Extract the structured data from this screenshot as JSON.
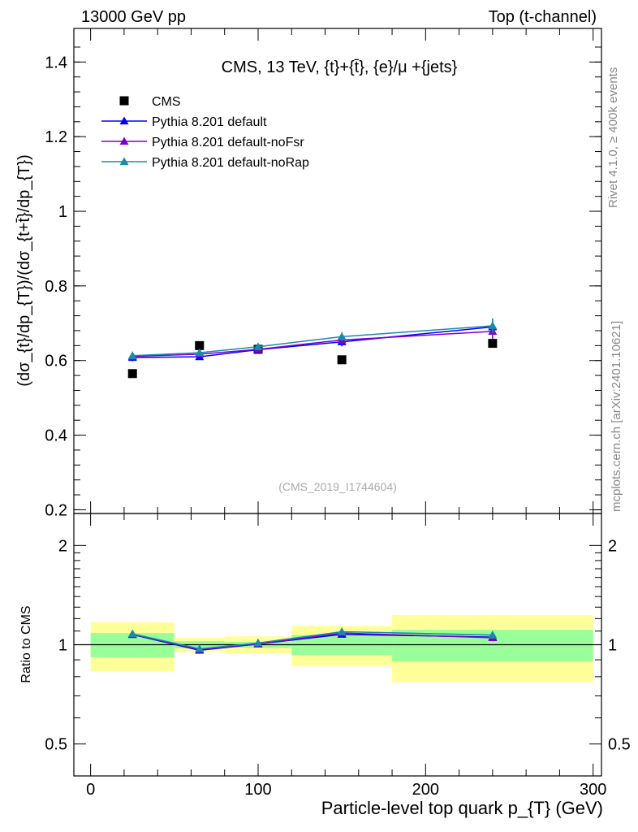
{
  "header": {
    "left": "13000 GeV pp",
    "right": "Top (t-channel)"
  },
  "side_labels": {
    "rivet": "Rivet 4.1.0, ≥ 400k events",
    "mcplots": "mcplots.cern.ch [arXiv:2401.10621]"
  },
  "chart_data": [
    {
      "type": "scatter",
      "panel": "main",
      "title": "CMS, 13 TeV, {t}+{t̄}, {e}/μ +{jets}",
      "watermark": "(CMS_2019_I1744604)",
      "ylabel": "(dσ_{t}/dp_{T})/(dσ_{t+t̄}/dp_{T})",
      "xlim": [
        -10,
        305
      ],
      "ylim": [
        0.19,
        1.49
      ],
      "yticks": [
        0.2,
        0.4,
        0.6,
        0.8,
        1.0,
        1.2,
        1.4
      ],
      "ytick_labels": [
        "0.2",
        "0.4",
        "0.6",
        "0.8",
        "1",
        "1.2",
        "1.4"
      ],
      "legend_position": "top-left",
      "series": [
        {
          "name": "CMS",
          "color": "#000000",
          "marker": "square",
          "x": [
            25,
            65,
            100,
            150,
            240
          ],
          "y": [
            0.565,
            0.64,
            0.63,
            0.602,
            0.646
          ]
        },
        {
          "name": "Pythia 8.201 default",
          "color": "#0000ff",
          "marker": "triangle",
          "x": [
            25,
            65,
            100,
            150,
            240
          ],
          "y": [
            0.608,
            0.61,
            0.629,
            0.65,
            0.69
          ],
          "err": [
            0.01,
            0.006,
            0.008,
            0.012,
            0.02
          ]
        },
        {
          "name": "Pythia 8.201 default-noFsr",
          "color": "#8000c8",
          "marker": "triangle",
          "x": [
            25,
            65,
            100,
            150,
            240
          ],
          "y": [
            0.611,
            0.617,
            0.63,
            0.655,
            0.678
          ],
          "err": [
            0.01,
            0.006,
            0.008,
            0.012,
            0.02
          ]
        },
        {
          "name": "Pythia 8.201 default-noRap",
          "color": "#1a8aaa",
          "marker": "triangle",
          "x": [
            25,
            65,
            100,
            150,
            240
          ],
          "y": [
            0.613,
            0.621,
            0.637,
            0.664,
            0.693
          ],
          "err": [
            0.01,
            0.006,
            0.008,
            0.012,
            0.02
          ]
        }
      ]
    },
    {
      "type": "line",
      "panel": "ratio",
      "ylabel": "Ratio to CMS",
      "xlabel": "Particle-level top quark p_{T} (GeV)",
      "xlim": [
        -10,
        305
      ],
      "ylim": [
        0.4,
        2.5
      ],
      "ylog": true,
      "yticks": [
        0.5,
        1,
        2
      ],
      "ytick_labels": [
        "0.5",
        "1",
        "2"
      ],
      "xticks": [
        0,
        100,
        200,
        300
      ],
      "xtick_labels": [
        "0",
        "100",
        "200",
        "300"
      ],
      "bands": [
        {
          "x0": 0,
          "x1": 50,
          "g_lo": 0.915,
          "g_hi": 1.085,
          "y_lo": 0.83,
          "y_hi": 1.17
        },
        {
          "x0": 50,
          "x1": 80,
          "g_lo": 0.975,
          "g_hi": 1.025,
          "y_lo": 0.95,
          "y_hi": 1.05
        },
        {
          "x0": 80,
          "x1": 120,
          "g_lo": 0.98,
          "g_hi": 1.02,
          "y_lo": 0.94,
          "y_hi": 1.06
        },
        {
          "x0": 120,
          "x1": 180,
          "g_lo": 0.93,
          "g_hi": 1.07,
          "y_lo": 0.86,
          "y_hi": 1.14
        },
        {
          "x0": 180,
          "x1": 300,
          "g_lo": 0.89,
          "g_hi": 1.11,
          "y_lo": 0.77,
          "y_hi": 1.23
        }
      ],
      "series": [
        {
          "name": "Pythia 8.201 default",
          "color": "#0000ff",
          "x": [
            25,
            65,
            100,
            150,
            240
          ],
          "y": [
            1.073,
            0.962,
            1.005,
            1.075,
            1.055
          ],
          "err": [
            0.01,
            0.008,
            0.01,
            0.015,
            0.025
          ]
        },
        {
          "name": "Pythia 8.201 default-noFsr",
          "color": "#8000c8",
          "x": [
            25,
            65,
            100,
            150,
            240
          ],
          "y": [
            1.076,
            0.968,
            1.005,
            1.085,
            1.05
          ],
          "err": [
            0.01,
            0.008,
            0.01,
            0.015,
            0.025
          ]
        },
        {
          "name": "Pythia 8.201 default-noRap",
          "color": "#1a8aaa",
          "x": [
            25,
            65,
            100,
            150,
            240
          ],
          "y": [
            1.079,
            0.972,
            1.012,
            1.095,
            1.07
          ],
          "err": [
            0.01,
            0.008,
            0.01,
            0.015,
            0.025
          ]
        }
      ]
    }
  ]
}
